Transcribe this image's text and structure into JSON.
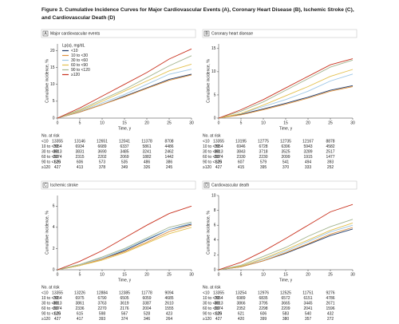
{
  "figure_title": [
    "Figure 3. Cumulative Incidence Curves for Major Cardiovascular Events (A), Coronary Heart Disease (B), Ischemic Stroke (C),",
    "and Cardiovascular Death (D)"
  ],
  "chart_data": [
    {
      "type": "line",
      "panel_label": "A",
      "title": "Major cardiovascular events",
      "xlabel": "Time, y",
      "ylabel": "Cumulative incidence, %",
      "legend_title": "Lp(a), mg/dL",
      "legend": "top-left",
      "risk_title": "No. at risk",
      "x": [
        0,
        5,
        10,
        15,
        20,
        25,
        30
      ],
      "xlim": [
        0,
        30
      ],
      "xticks": [
        0,
        5,
        10,
        15,
        20,
        25,
        30
      ],
      "ylim": [
        0,
        22
      ],
      "yticks": [
        0,
        5,
        10,
        15,
        20
      ],
      "series": [
        {
          "name": "<10",
          "color": "#1f3a68",
          "values": [
            0,
            1.8,
            4,
            6.5,
            9,
            11.5,
            13
          ],
          "at_risk": [
            13355,
            13146,
            12651,
            12041,
            11378,
            8708
          ]
        },
        {
          "name": "10 to <30",
          "color": "#e0913c",
          "values": [
            0,
            1.8,
            4,
            6.3,
            8.8,
            11.2,
            12.8
          ],
          "at_risk": [
            7054,
            6934,
            6689,
            6337,
            5861,
            4486
          ]
        },
        {
          "name": "30 to <60",
          "color": "#9cc6e6",
          "values": [
            0,
            2,
            4.5,
            7,
            10,
            13,
            14.5
          ],
          "at_risk": [
            3913,
            3831,
            3690,
            3485,
            3241,
            2462
          ]
        },
        {
          "name": "60 to <90",
          "color": "#e3c04e",
          "values": [
            0,
            2.2,
            5,
            8,
            11,
            14,
            16
          ],
          "at_risk": [
            2374,
            2315,
            2202,
            2069,
            1882,
            1442
          ]
        },
        {
          "name": "90 to <120",
          "color": "#a3b48f",
          "values": [
            0,
            2.5,
            5.5,
            8.5,
            12,
            15.5,
            18.5
          ],
          "at_risk": [
            625,
            606,
            573,
            535,
            486,
            386
          ]
        },
        {
          "name": "≥120",
          "color": "#c9321f",
          "values": [
            0,
            3,
            6.5,
            10,
            13.5,
            17.5,
            20.5
          ],
          "at_risk": [
            427,
            413,
            378,
            349,
            326,
            245
          ]
        }
      ]
    },
    {
      "type": "line",
      "panel_label": "B",
      "title": "Coronary heart disease",
      "xlabel": "Time, y",
      "ylabel": "Cumulative incidence, %",
      "risk_title": "No. at risk",
      "x": [
        0,
        5,
        10,
        15,
        20,
        25,
        30
      ],
      "xlim": [
        0,
        30
      ],
      "xticks": [
        0,
        5,
        10,
        15,
        20,
        25,
        30
      ],
      "ylim": [
        0,
        16
      ],
      "yticks": [
        0,
        5,
        10,
        15
      ],
      "series": [
        {
          "name": "<10",
          "color": "#1f3a68",
          "values": [
            0,
            0.8,
            2,
            3.2,
            4.5,
            6,
            7
          ],
          "at_risk": [
            13355,
            13195,
            12775,
            12735,
            12167,
            8878
          ]
        },
        {
          "name": "10 to <30",
          "color": "#e0913c",
          "values": [
            0,
            0.7,
            1.8,
            3,
            4.3,
            5.8,
            6.8
          ],
          "at_risk": [
            7054,
            6946,
            6728,
            6396,
            5943,
            4582
          ]
        },
        {
          "name": "30 to <60",
          "color": "#9cc6e6",
          "values": [
            0,
            1,
            2.5,
            4,
            5.8,
            8,
            9.5
          ],
          "at_risk": [
            3913,
            3843,
            3718,
            3525,
            3289,
            2517
          ]
        },
        {
          "name": "60 to <90",
          "color": "#e3c04e",
          "values": [
            0,
            1,
            2.8,
            4.8,
            6.8,
            9,
            10.5
          ],
          "at_risk": [
            2374,
            2330,
            2230,
            2099,
            1915,
            1477
          ]
        },
        {
          "name": "90 to <120",
          "color": "#a3b48f",
          "values": [
            0,
            1.5,
            3.5,
            6,
            8.5,
            11,
            12.5
          ],
          "at_risk": [
            625,
            607,
            579,
            541,
            494,
            393
          ]
        },
        {
          "name": "≥120",
          "color": "#c9321f",
          "values": [
            0,
            1.8,
            4,
            6.5,
            9,
            11.5,
            12.8
          ],
          "at_risk": [
            427,
            415,
            395,
            370,
            333,
            252
          ]
        }
      ]
    },
    {
      "type": "line",
      "panel_label": "C",
      "title": "Ischemic stroke",
      "xlabel": "Time, y",
      "ylabel": "Cumulative incidence, %",
      "risk_title": "No. at risk",
      "x": [
        0,
        5,
        10,
        15,
        20,
        25,
        30
      ],
      "xlim": [
        0,
        30
      ],
      "xticks": [
        0,
        5,
        10,
        15,
        20,
        25,
        30
      ],
      "ylim": [
        0,
        7
      ],
      "yticks": [
        0,
        2,
        4,
        6
      ],
      "series": [
        {
          "name": "<10",
          "color": "#1f3a68",
          "values": [
            0,
            0.4,
            1,
            1.8,
            2.8,
            3.8,
            4.3
          ],
          "at_risk": [
            13355,
            13226,
            12884,
            12385,
            11778,
            9094
          ]
        },
        {
          "name": "10 to <30",
          "color": "#e0913c",
          "values": [
            0,
            0.4,
            1,
            1.7,
            2.6,
            3.6,
            4.2
          ],
          "at_risk": [
            7054,
            6975,
            6790,
            6505,
            6059,
            4685
          ]
        },
        {
          "name": "30 to <60",
          "color": "#9cc6e6",
          "values": [
            0,
            0.5,
            1.1,
            1.9,
            2.9,
            3.8,
            4.4
          ],
          "at_risk": [
            3913,
            3861,
            3763,
            3619,
            3387,
            2610
          ]
        },
        {
          "name": "60 to <90",
          "color": "#e3c04e",
          "values": [
            0,
            0.4,
            0.9,
            1.6,
            2.5,
            3.4,
            4
          ],
          "at_risk": [
            2374,
            2336,
            2270,
            2176,
            2004,
            1555
          ]
        },
        {
          "name": "90 to <120",
          "color": "#a3b48f",
          "values": [
            0,
            0.5,
            1.2,
            2,
            3,
            4,
            4.5
          ],
          "at_risk": [
            625,
            615,
            598,
            567,
            528,
            423
          ]
        },
        {
          "name": "≥120",
          "color": "#c9321f",
          "values": [
            0,
            0.8,
            1.8,
            3,
            4.2,
            5.3,
            6
          ],
          "at_risk": [
            427,
            417,
            393,
            374,
            346,
            264
          ]
        }
      ]
    },
    {
      "type": "line",
      "panel_label": "D",
      "title": "Cardiovascular death",
      "xlabel": "Time, y",
      "ylabel": "Cumulative incidence, %",
      "risk_title": "No. at risk",
      "x": [
        0,
        5,
        10,
        15,
        20,
        25,
        30
      ],
      "xlim": [
        0,
        30
      ],
      "xticks": [
        0,
        5,
        10,
        15,
        20,
        25,
        30
      ],
      "ylim": [
        0,
        10
      ],
      "yticks": [
        0,
        2,
        4,
        6,
        8,
        10
      ],
      "series": [
        {
          "name": "<10",
          "color": "#1f3a68",
          "values": [
            0,
            0.4,
            1.2,
            2.2,
            3.4,
            4.6,
            5.5
          ],
          "at_risk": [
            13355,
            13254,
            12976,
            12525,
            11751,
            9276
          ]
        },
        {
          "name": "10 to <30",
          "color": "#e0913c",
          "values": [
            0,
            0.4,
            1.2,
            2.3,
            3.5,
            4.8,
            5.7
          ],
          "at_risk": [
            7054,
            6989,
            6835,
            6572,
            6151,
            4786
          ]
        },
        {
          "name": "30 to <60",
          "color": "#9cc6e6",
          "values": [
            0,
            0.5,
            1.4,
            2.5,
            3.8,
            5.1,
            6
          ],
          "at_risk": [
            3913,
            3866,
            3795,
            3665,
            3445,
            2671
          ]
        },
        {
          "name": "60 to <90",
          "color": "#e3c04e",
          "values": [
            0,
            0.5,
            1.5,
            2.7,
            4,
            5.3,
            6.3
          ],
          "at_risk": [
            2374,
            2352,
            2298,
            2209,
            2041,
            1596
          ]
        },
        {
          "name": "90 to <120",
          "color": "#a3b48f",
          "values": [
            0,
            0.6,
            1.8,
            3,
            4.5,
            5.8,
            6.8
          ],
          "at_risk": [
            625,
            621,
            606,
            583,
            540,
            432
          ]
        },
        {
          "name": "≥120",
          "color": "#c9321f",
          "values": [
            0,
            1,
            2.5,
            4.2,
            6,
            7.8,
            8.8
          ],
          "at_risk": [
            427,
            420,
            399,
            380,
            357,
            272
          ]
        }
      ]
    }
  ]
}
